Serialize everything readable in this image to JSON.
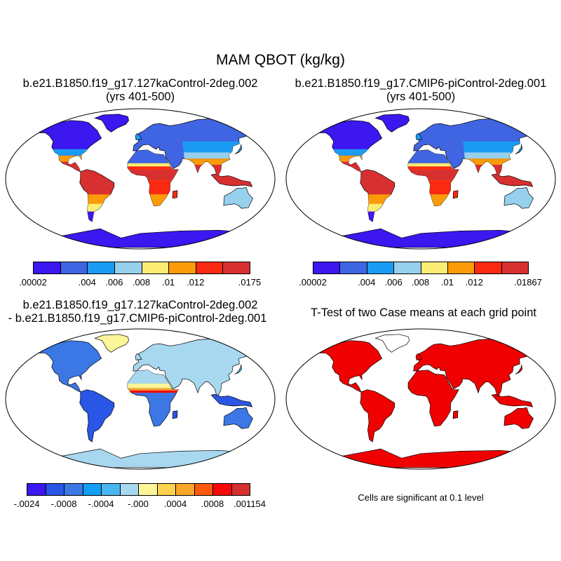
{
  "figure": {
    "title": "MAM QBOT (kg/kg)",
    "note": "Cells are significant at 0.1 level"
  },
  "panels": [
    {
      "title_line1": "b.e21.B1850.f19_g17.127kaControl-2deg.002",
      "title_line2": "(yrs 401-500)",
      "style": "abs"
    },
    {
      "title_line1": "b.e21.B1850.f19_g17.CMIP6-piControl-2deg.001",
      "title_line2": "(yrs 401-500)",
      "style": "abs"
    },
    {
      "title_line1": "b.e21.B1850.f19_g17.127kaControl-2deg.002",
      "title_line2": "- b.e21.B1850.f19_g17.CMIP6-piControl-2deg.001",
      "style": "diff"
    },
    {
      "title_line1": "T-Test of two Case means at each grid point",
      "title_line2": "",
      "style": "ttest"
    }
  ],
  "colorbars": [
    {
      "colors": [
        "#3c17f0",
        "#4065e2",
        "#1a9cf5",
        "#97d0ed",
        "#fbed74",
        "#fb9b07",
        "#fa2912",
        "#d83030"
      ],
      "labels": [
        ".00002",
        ".004",
        ".006",
        ".008",
        ".01",
        ".012",
        ".0175"
      ],
      "label_boundaries": [
        0,
        2,
        3,
        4,
        5,
        6,
        8
      ]
    },
    {
      "colors": [
        "#3c17f0",
        "#4065e2",
        "#1a9cf5",
        "#97d0ed",
        "#fbed74",
        "#fb9b07",
        "#fa2912",
        "#d83030"
      ],
      "labels": [
        ".00002",
        ".004",
        ".006",
        ".008",
        ".01",
        ".012",
        ".01867"
      ],
      "label_boundaries": [
        0,
        2,
        3,
        4,
        5,
        6,
        8
      ]
    },
    {
      "colors": [
        "#3c17f0",
        "#2a56e6",
        "#3b78e6",
        "#139ff5",
        "#4ab6f0",
        "#a8d8f0",
        "#fdf59a",
        "#fdd24f",
        "#fba52a",
        "#fb5a0c",
        "#f50a0a",
        "#d43030"
      ],
      "labels": [
        "-.0024",
        "-.0008",
        "-.0004",
        "-.000",
        ".0004",
        ".0008",
        ".001154"
      ],
      "label_boundaries": [
        0,
        2,
        4,
        6,
        8,
        10,
        12
      ]
    }
  ],
  "significance_color": "#f00000"
}
